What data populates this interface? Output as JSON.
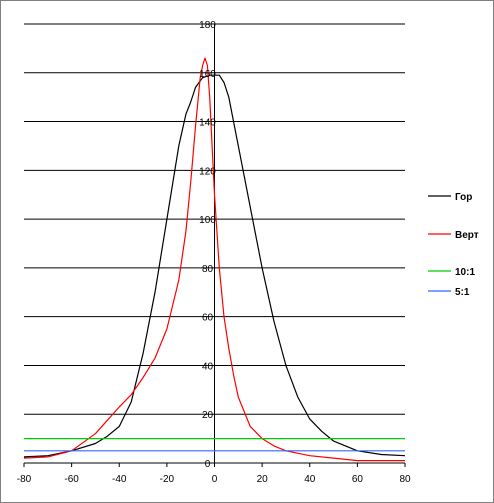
{
  "chart_data": {
    "type": "line",
    "title": "",
    "xlabel": "",
    "ylabel": "",
    "xlim": [
      -80,
      80
    ],
    "ylim": [
      0,
      180
    ],
    "x_ticks": [
      -80,
      -60,
      -40,
      -20,
      0,
      20,
      40,
      60,
      80
    ],
    "y_ticks": [
      0,
      20,
      40,
      60,
      80,
      100,
      120,
      140,
      160,
      180
    ],
    "grid": "horizontal",
    "legend_position": "right",
    "series": [
      {
        "name": "Гор",
        "color": "#000000",
        "points": [
          [
            -80,
            2.5
          ],
          [
            -70,
            3
          ],
          [
            -60,
            5
          ],
          [
            -50,
            8
          ],
          [
            -45,
            11
          ],
          [
            -40,
            15
          ],
          [
            -35,
            25
          ],
          [
            -30,
            45
          ],
          [
            -25,
            70
          ],
          [
            -20,
            100
          ],
          [
            -15,
            130
          ],
          [
            -12,
            143
          ],
          [
            -10,
            148
          ],
          [
            -8,
            154
          ],
          [
            -5,
            158
          ],
          [
            -2,
            159
          ],
          [
            0,
            159
          ],
          [
            2,
            159
          ],
          [
            4,
            156
          ],
          [
            6,
            150
          ],
          [
            10,
            130
          ],
          [
            15,
            105
          ],
          [
            20,
            80
          ],
          [
            25,
            58
          ],
          [
            30,
            40
          ],
          [
            35,
            27
          ],
          [
            40,
            18
          ],
          [
            45,
            13
          ],
          [
            50,
            9
          ],
          [
            60,
            5
          ],
          [
            70,
            3.5
          ],
          [
            80,
            3
          ]
        ]
      },
      {
        "name": "Верт",
        "color": "#ff0000",
        "points": [
          [
            -80,
            2
          ],
          [
            -70,
            2.5
          ],
          [
            -60,
            5
          ],
          [
            -50,
            12
          ],
          [
            -40,
            23
          ],
          [
            -35,
            28
          ],
          [
            -30,
            35
          ],
          [
            -25,
            43
          ],
          [
            -20,
            55
          ],
          [
            -15,
            75
          ],
          [
            -12,
            95
          ],
          [
            -10,
            115
          ],
          [
            -8,
            138
          ],
          [
            -6,
            158
          ],
          [
            -5,
            163
          ],
          [
            -4,
            166
          ],
          [
            -3,
            163
          ],
          [
            -2,
            150
          ],
          [
            0,
            110
          ],
          [
            2,
            80
          ],
          [
            4,
            60
          ],
          [
            6,
            47
          ],
          [
            8,
            36
          ],
          [
            10,
            27
          ],
          [
            15,
            15
          ],
          [
            20,
            10
          ],
          [
            25,
            7
          ],
          [
            30,
            5
          ],
          [
            40,
            3
          ],
          [
            50,
            2
          ],
          [
            60,
            1
          ],
          [
            70,
            1
          ],
          [
            80,
            1
          ]
        ]
      },
      {
        "name": "10:1",
        "color": "#00cc00",
        "points": [
          [
            -80,
            10
          ],
          [
            80,
            10
          ]
        ]
      },
      {
        "name": "5:1",
        "color": "#3366ff",
        "points": [
          [
            -80,
            5
          ],
          [
            80,
            5
          ]
        ]
      }
    ]
  }
}
